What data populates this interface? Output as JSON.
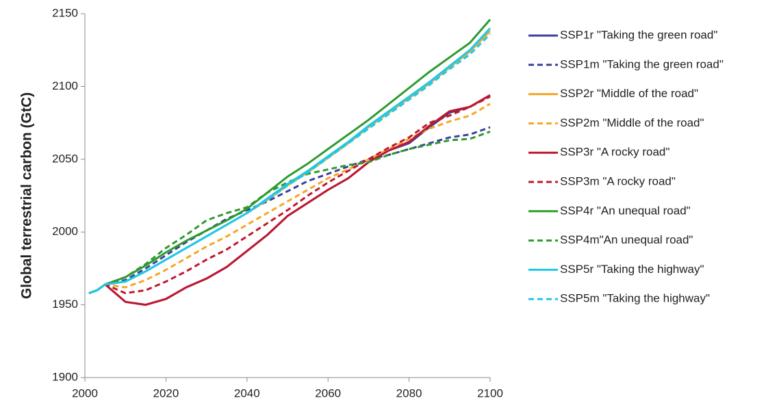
{
  "chart_data": {
    "type": "line",
    "ylabel": "Global terrestrial carbon (GtC)",
    "x": [
      2001,
      2003,
      2005,
      2010,
      2015,
      2020,
      2025,
      2030,
      2035,
      2040,
      2045,
      2050,
      2055,
      2060,
      2065,
      2070,
      2075,
      2080,
      2085,
      2090,
      2095,
      2100
    ],
    "xlim": [
      2000,
      2100
    ],
    "xticks": [
      2000,
      2020,
      2040,
      2060,
      2080,
      2100
    ],
    "ylim": [
      1900,
      2150
    ],
    "yticks": [
      1900,
      1950,
      2000,
      2050,
      2100,
      2150
    ],
    "grid": false,
    "legend": "right",
    "series": [
      {
        "name": "SSP1r \"Taking the green road\"",
        "color": "#3b3f9a",
        "dashed": false,
        "values": [
          1958,
          1960,
          1964,
          1952,
          1950,
          1954,
          1962,
          1968,
          1976,
          1987,
          1998,
          2011,
          2020,
          2029,
          2037,
          2048,
          2056,
          2061,
          2072,
          2082,
          2086,
          2094
        ]
      },
      {
        "name": "SSP1m \"Taking the green road\"",
        "color": "#3b3f9a",
        "dashed": true,
        "values": [
          1958,
          1960,
          1964,
          1967,
          1975,
          1984,
          1993,
          2001,
          2009,
          2015,
          2021,
          2028,
          2035,
          2040,
          2045,
          2050,
          2053,
          2057,
          2061,
          2065,
          2067,
          2072
        ]
      },
      {
        "name": "SSP2r \"Middle of the road\"",
        "color": "#f5a623",
        "dashed": false,
        "values": [
          1958,
          1960,
          1964,
          1966,
          1973,
          1981,
          1989,
          1997,
          2005,
          2013,
          2022,
          2032,
          2041,
          2051,
          2061,
          2072,
          2082,
          2092,
          2102,
          2113,
          2124,
          2138
        ]
      },
      {
        "name": "SSP2m \"Middle of the road\"",
        "color": "#f5a623",
        "dashed": true,
        "values": [
          1958,
          1960,
          1964,
          1962,
          1967,
          1974,
          1982,
          1990,
          1997,
          2005,
          2013,
          2021,
          2029,
          2037,
          2043,
          2050,
          2057,
          2064,
          2071,
          2076,
          2080,
          2088
        ]
      },
      {
        "name": "SSP3r \"A rocky road\"",
        "color": "#c0172d",
        "dashed": false,
        "values": [
          1958,
          1960,
          1964,
          1952,
          1950,
          1954,
          1962,
          1968,
          1976,
          1987,
          1998,
          2011,
          2020,
          2029,
          2037,
          2048,
          2056,
          2062,
          2073,
          2083,
          2086,
          2094
        ]
      },
      {
        "name": "SSP3m \"A rocky road\"",
        "color": "#c0172d",
        "dashed": true,
        "values": [
          1958,
          1960,
          1964,
          1958,
          1960,
          1966,
          1973,
          1981,
          1988,
          1997,
          2006,
          2015,
          2025,
          2034,
          2042,
          2050,
          2058,
          2065,
          2075,
          2080,
          2086,
          2093
        ]
      },
      {
        "name": "SSP4r \"An unequal road\"",
        "color": "#2e9a2e",
        "dashed": false,
        "values": [
          1958,
          1960,
          1964,
          1969,
          1977,
          1986,
          1994,
          2001,
          2008,
          2016,
          2027,
          2038,
          2047,
          2057,
          2067,
          2077,
          2088,
          2099,
          2110,
          2120,
          2130,
          2146
        ]
      },
      {
        "name": "SSP4m\"An unequal road\"",
        "color": "#2e9a2e",
        "dashed": true,
        "values": [
          1958,
          1960,
          1964,
          1969,
          1978,
          1989,
          1998,
          2008,
          2013,
          2017,
          2027,
          2034,
          2040,
          2043,
          2046,
          2048,
          2053,
          2057,
          2060,
          2063,
          2064,
          2069
        ]
      },
      {
        "name": "SSP5r \"Taking the highway\"",
        "color": "#1ec8e8",
        "dashed": false,
        "values": [
          1958,
          1960,
          1964,
          1966,
          1973,
          1981,
          1989,
          1997,
          2005,
          2013,
          2023,
          2033,
          2042,
          2052,
          2062,
          2073,
          2083,
          2093,
          2103,
          2114,
          2125,
          2140
        ]
      },
      {
        "name": "SSP5m \"Taking the highway\"",
        "color": "#1ec8e8",
        "dashed": true,
        "values": [
          1958,
          1960,
          1964,
          1966,
          1973,
          1981,
          1989,
          1997,
          2005,
          2013,
          2022,
          2032,
          2041,
          2051,
          2061,
          2071,
          2081,
          2091,
          2101,
          2112,
          2122,
          2136
        ]
      }
    ]
  }
}
